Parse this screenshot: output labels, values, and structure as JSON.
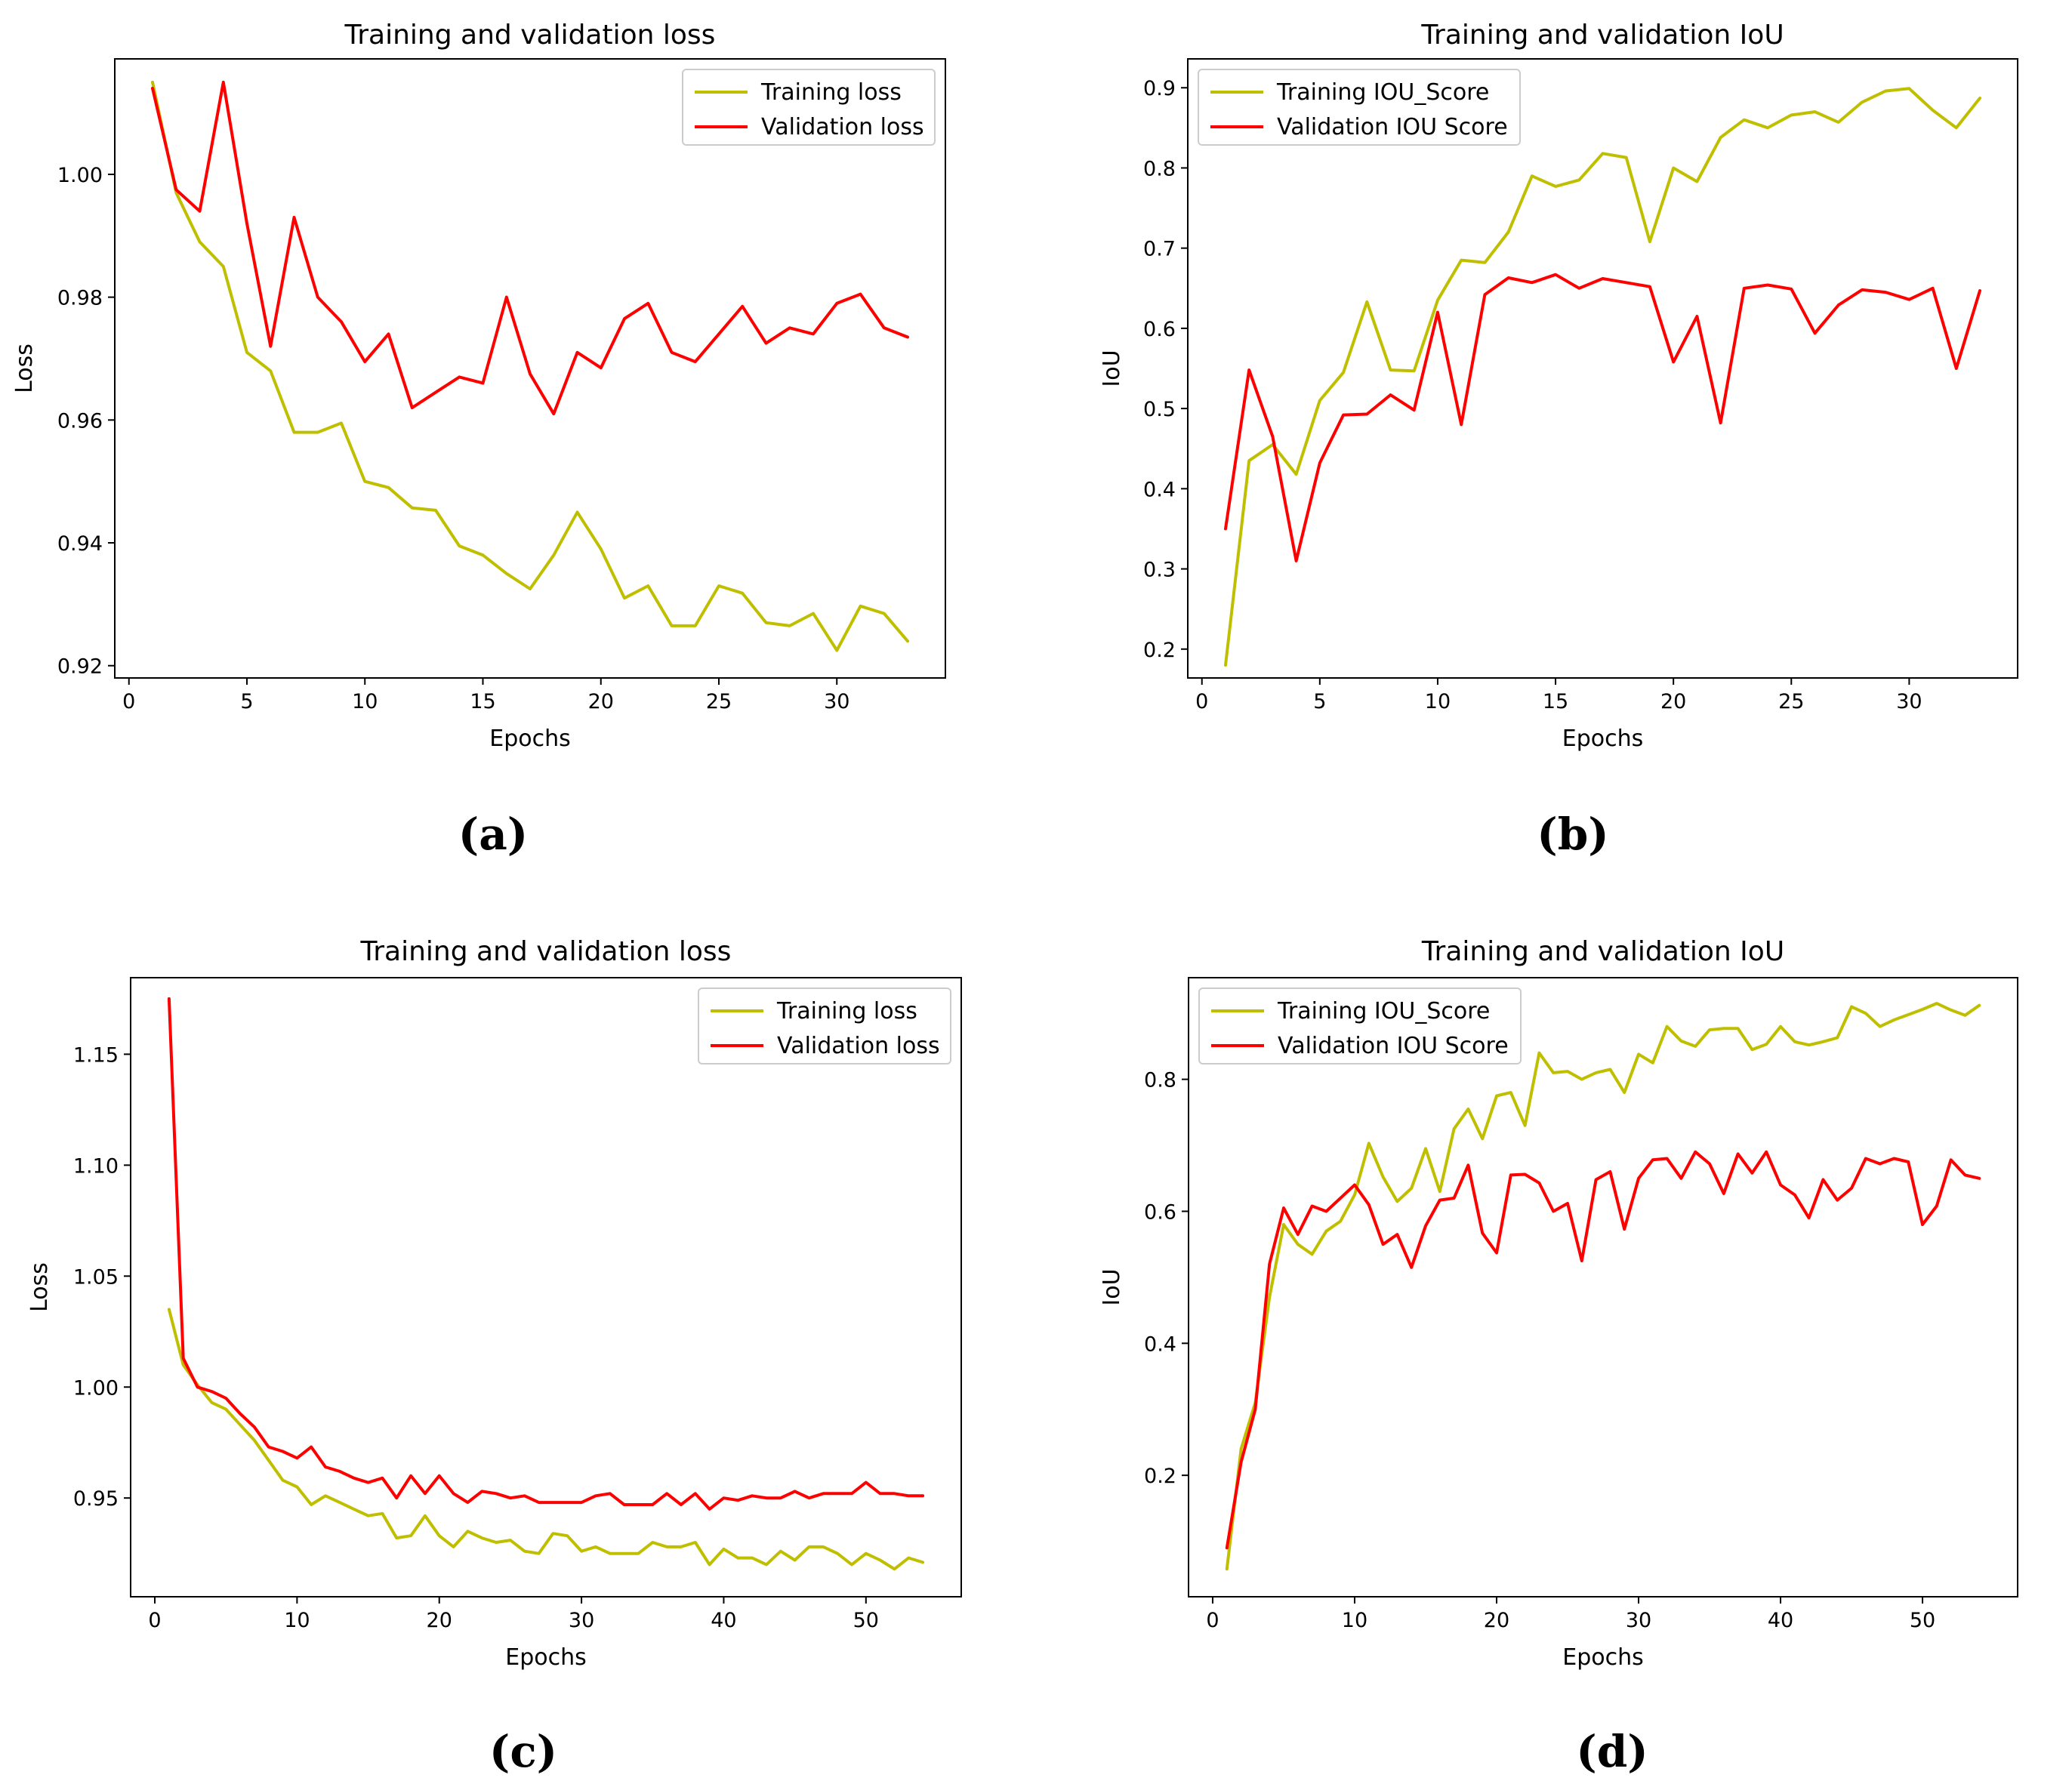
{
  "colors": {
    "training": "#bfbf00",
    "validation": "#ff0000",
    "axes": "#000000",
    "background": "#ffffff"
  },
  "chart_data": [
    {
      "panel": "(a)",
      "type": "line",
      "title": "Training and validation loss",
      "xlabel": "Epochs",
      "ylabel": "Loss",
      "xlim": [
        -0.6,
        34.6
      ],
      "ylim": [
        0.918,
        1.0188
      ],
      "xticks": [
        0,
        5,
        10,
        15,
        20,
        25,
        30
      ],
      "xtick_labels": [
        "0",
        "5",
        "10",
        "15",
        "20",
        "25",
        "30"
      ],
      "yticks": [
        0.92,
        0.94,
        0.96,
        0.98,
        1.0
      ],
      "ytick_labels": [
        "0.92",
        "0.94",
        "0.96",
        "0.98",
        "1.00"
      ],
      "legend_position": "upper right",
      "series": [
        {
          "name": "Training loss",
          "color": "#bfbf00",
          "x": [
            1,
            2,
            3,
            4,
            5,
            6,
            7,
            8,
            9,
            10,
            11,
            12,
            13,
            14,
            15,
            16,
            17,
            18,
            19,
            20,
            21,
            22,
            23,
            24,
            25,
            26,
            27,
            28,
            29,
            30,
            31,
            32,
            33
          ],
          "values": [
            1.015,
            0.997,
            0.989,
            0.985,
            0.971,
            0.968,
            0.958,
            0.958,
            0.9595,
            0.95,
            0.949,
            0.9457,
            0.9453,
            0.9395,
            0.938,
            0.935,
            0.9325,
            0.938,
            0.945,
            0.939,
            0.931,
            0.933,
            0.9265,
            0.9265,
            0.933,
            0.9318,
            0.927,
            0.9265,
            0.9285,
            0.9225,
            0.9297,
            0.9285,
            0.924
          ]
        },
        {
          "name": "Validation loss",
          "color": "#ff0000",
          "x": [
            1,
            2,
            3,
            4,
            5,
            6,
            7,
            8,
            9,
            10,
            11,
            12,
            13,
            14,
            15,
            16,
            17,
            18,
            19,
            20,
            21,
            22,
            23,
            24,
            25,
            26,
            27,
            28,
            29,
            30,
            31,
            32,
            33
          ],
          "values": [
            1.014,
            0.9975,
            0.994,
            1.015,
            0.992,
            0.972,
            0.993,
            0.98,
            0.976,
            0.9695,
            0.974,
            0.962,
            0.9645,
            0.967,
            0.966,
            0.98,
            0.9675,
            0.961,
            0.971,
            0.9685,
            0.9765,
            0.979,
            0.971,
            0.9695,
            0.974,
            0.9785,
            0.9725,
            0.975,
            0.974,
            0.979,
            0.9805,
            0.975,
            0.9735
          ]
        }
      ]
    },
    {
      "panel": "(b)",
      "type": "line",
      "title": "Training and validation IoU",
      "xlabel": "Epochs",
      "ylabel": "IoU",
      "xlim": [
        -0.6,
        34.6
      ],
      "ylim": [
        0.164,
        0.936
      ],
      "xticks": [
        0,
        5,
        10,
        15,
        20,
        25,
        30
      ],
      "xtick_labels": [
        "0",
        "5",
        "10",
        "15",
        "20",
        "25",
        "30"
      ],
      "yticks": [
        0.2,
        0.3,
        0.4,
        0.5,
        0.6,
        0.7,
        0.8,
        0.9
      ],
      "ytick_labels": [
        "0.2",
        "0.3",
        "0.4",
        "0.5",
        "0.6",
        "0.7",
        "0.8",
        "0.9"
      ],
      "legend_position": "upper left",
      "series": [
        {
          "name": "Training IOU_Score",
          "color": "#bfbf00",
          "x": [
            1,
            2,
            3,
            4,
            5,
            6,
            7,
            8,
            9,
            10,
            11,
            12,
            13,
            14,
            15,
            16,
            17,
            18,
            19,
            20,
            21,
            22,
            23,
            24,
            25,
            26,
            27,
            28,
            29,
            30,
            31,
            32,
            33
          ],
          "values": [
            0.18,
            0.435,
            0.455,
            0.418,
            0.51,
            0.545,
            0.633,
            0.548,
            0.547,
            0.635,
            0.685,
            0.682,
            0.72,
            0.79,
            0.777,
            0.785,
            0.818,
            0.813,
            0.708,
            0.8,
            0.783,
            0.838,
            0.86,
            0.85,
            0.866,
            0.87,
            0.857,
            0.882,
            0.896,
            0.899,
            0.872,
            0.85,
            0.887
          ]
        },
        {
          "name": "Validation IOU Score",
          "color": "#ff0000",
          "x": [
            1,
            2,
            3,
            4,
            5,
            6,
            7,
            8,
            9,
            10,
            11,
            12,
            13,
            14,
            15,
            16,
            17,
            18,
            19,
            20,
            21,
            22,
            23,
            24,
            25,
            26,
            27,
            28,
            29,
            30,
            31,
            32,
            33
          ],
          "values": [
            0.35,
            0.548,
            0.465,
            0.31,
            0.432,
            0.492,
            0.493,
            0.517,
            0.498,
            0.62,
            0.48,
            0.642,
            0.663,
            0.657,
            0.667,
            0.65,
            0.662,
            0.657,
            0.652,
            0.558,
            0.615,
            0.482,
            0.65,
            0.654,
            0.649,
            0.594,
            0.629,
            0.648,
            0.645,
            0.636,
            0.65,
            0.55,
            0.647
          ]
        }
      ]
    },
    {
      "panel": "(c)",
      "type": "line",
      "title": "Training and validation loss",
      "xlabel": "Epochs",
      "ylabel": "Loss",
      "xlim": [
        -1.7,
        56.7
      ],
      "ylim": [
        0.9055,
        1.1845
      ],
      "xticks": [
        0,
        10,
        20,
        30,
        40,
        50
      ],
      "xtick_labels": [
        "0",
        "10",
        "20",
        "30",
        "40",
        "50"
      ],
      "yticks": [
        0.95,
        1.0,
        1.05,
        1.1,
        1.15
      ],
      "ytick_labels": [
        "0.95",
        "1.00",
        "1.05",
        "1.10",
        "1.15"
      ],
      "legend_position": "upper right",
      "series": [
        {
          "name": "Training loss",
          "color": "#bfbf00",
          "x": [
            1,
            2,
            3,
            4,
            5,
            6,
            7,
            8,
            9,
            10,
            11,
            12,
            13,
            14,
            15,
            16,
            17,
            18,
            19,
            20,
            21,
            22,
            23,
            24,
            25,
            26,
            27,
            28,
            29,
            30,
            31,
            32,
            33,
            34,
            35,
            36,
            37,
            38,
            39,
            40,
            41,
            42,
            43,
            44,
            45,
            46,
            47,
            48,
            49,
            50,
            51,
            52,
            53,
            54
          ],
          "values": [
            1.035,
            1.01,
            1.001,
            0.993,
            0.99,
            0.983,
            0.976,
            0.967,
            0.958,
            0.955,
            0.947,
            0.951,
            0.948,
            0.945,
            0.942,
            0.943,
            0.932,
            0.933,
            0.942,
            0.933,
            0.928,
            0.935,
            0.932,
            0.93,
            0.931,
            0.926,
            0.925,
            0.934,
            0.933,
            0.926,
            0.928,
            0.925,
            0.925,
            0.925,
            0.93,
            0.928,
            0.928,
            0.93,
            0.92,
            0.927,
            0.923,
            0.923,
            0.92,
            0.926,
            0.922,
            0.928,
            0.928,
            0.925,
            0.92,
            0.925,
            0.922,
            0.918,
            0.923,
            0.921
          ]
        },
        {
          "name": "Validation loss",
          "color": "#ff0000",
          "x": [
            1,
            2,
            3,
            4,
            5,
            6,
            7,
            8,
            9,
            10,
            11,
            12,
            13,
            14,
            15,
            16,
            17,
            18,
            19,
            20,
            21,
            22,
            23,
            24,
            25,
            26,
            27,
            28,
            29,
            30,
            31,
            32,
            33,
            34,
            35,
            36,
            37,
            38,
            39,
            40,
            41,
            42,
            43,
            44,
            45,
            46,
            47,
            48,
            49,
            50,
            51,
            52,
            53,
            54
          ],
          "values": [
            1.175,
            1.013,
            1.0,
            0.998,
            0.995,
            0.988,
            0.982,
            0.973,
            0.971,
            0.968,
            0.973,
            0.964,
            0.962,
            0.959,
            0.957,
            0.959,
            0.95,
            0.96,
            0.952,
            0.96,
            0.952,
            0.948,
            0.953,
            0.952,
            0.95,
            0.951,
            0.948,
            0.948,
            0.948,
            0.948,
            0.951,
            0.952,
            0.947,
            0.947,
            0.947,
            0.952,
            0.947,
            0.952,
            0.945,
            0.95,
            0.949,
            0.951,
            0.95,
            0.95,
            0.953,
            0.95,
            0.952,
            0.952,
            0.952,
            0.957,
            0.952,
            0.952,
            0.951,
            0.951
          ]
        }
      ]
    },
    {
      "panel": "(d)",
      "type": "line",
      "title": "Training and validation IoU",
      "xlabel": "Epochs",
      "ylabel": "IoU",
      "xlim": [
        -1.7,
        56.7
      ],
      "ylim": [
        0.016,
        0.954
      ],
      "xticks": [
        0,
        10,
        20,
        30,
        40,
        50
      ],
      "xtick_labels": [
        "0",
        "10",
        "20",
        "30",
        "40",
        "50"
      ],
      "yticks": [
        0.2,
        0.4,
        0.6,
        0.8
      ],
      "ytick_labels": [
        "0.2",
        "0.4",
        "0.6",
        "0.8"
      ],
      "legend_position": "upper left",
      "series": [
        {
          "name": "Training IOU_Score",
          "color": "#bfbf00",
          "x": [
            1,
            2,
            3,
            4,
            5,
            6,
            7,
            8,
            9,
            10,
            11,
            12,
            13,
            14,
            15,
            16,
            17,
            18,
            19,
            20,
            21,
            22,
            23,
            24,
            25,
            26,
            27,
            28,
            29,
            30,
            31,
            32,
            33,
            34,
            35,
            36,
            37,
            38,
            39,
            40,
            41,
            42,
            43,
            44,
            45,
            46,
            47,
            48,
            49,
            50,
            51,
            52,
            53,
            54
          ],
          "values": [
            0.058,
            0.24,
            0.31,
            0.47,
            0.58,
            0.55,
            0.535,
            0.57,
            0.585,
            0.625,
            0.703,
            0.652,
            0.615,
            0.635,
            0.695,
            0.63,
            0.725,
            0.755,
            0.71,
            0.775,
            0.78,
            0.73,
            0.84,
            0.81,
            0.812,
            0.8,
            0.81,
            0.815,
            0.78,
            0.838,
            0.825,
            0.88,
            0.858,
            0.85,
            0.875,
            0.877,
            0.877,
            0.845,
            0.853,
            0.88,
            0.857,
            0.852,
            0.857,
            0.863,
            0.91,
            0.9,
            0.88,
            0.89,
            0.898,
            0.906,
            0.915,
            0.905,
            0.897,
            0.912
          ]
        },
        {
          "name": "Validation IOU Score",
          "color": "#ff0000",
          "x": [
            1,
            2,
            3,
            4,
            5,
            6,
            7,
            8,
            9,
            10,
            11,
            12,
            13,
            14,
            15,
            16,
            17,
            18,
            19,
            20,
            21,
            22,
            23,
            24,
            25,
            26,
            27,
            28,
            29,
            30,
            31,
            32,
            33,
            34,
            35,
            36,
            37,
            38,
            39,
            40,
            41,
            42,
            43,
            44,
            45,
            46,
            47,
            48,
            49,
            50,
            51,
            52,
            53,
            54
          ],
          "values": [
            0.09,
            0.22,
            0.3,
            0.52,
            0.605,
            0.565,
            0.608,
            0.6,
            0.62,
            0.64,
            0.61,
            0.55,
            0.565,
            0.515,
            0.578,
            0.617,
            0.62,
            0.67,
            0.567,
            0.537,
            0.655,
            0.656,
            0.643,
            0.6,
            0.612,
            0.525,
            0.648,
            0.66,
            0.573,
            0.65,
            0.678,
            0.68,
            0.65,
            0.69,
            0.672,
            0.627,
            0.687,
            0.658,
            0.69,
            0.64,
            0.625,
            0.59,
            0.648,
            0.617,
            0.635,
            0.68,
            0.672,
            0.68,
            0.675,
            0.58,
            0.608,
            0.678,
            0.655,
            0.65
          ]
        }
      ]
    }
  ]
}
